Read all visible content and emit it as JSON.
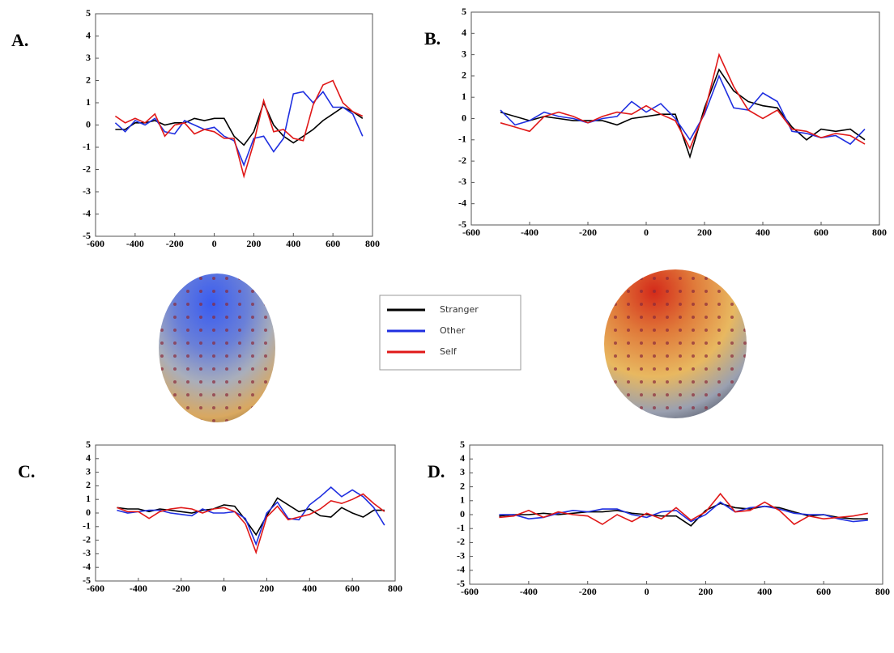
{
  "chart_data": [
    {
      "type": "line",
      "label": "A.",
      "x": [
        -500,
        -450,
        -400,
        -350,
        -300,
        -250,
        -200,
        -150,
        -100,
        -50,
        0,
        50,
        100,
        150,
        200,
        250,
        300,
        350,
        400,
        450,
        500,
        550,
        600,
        650,
        700,
        750
      ],
      "series": [
        {
          "values": [
            -0.2,
            -0.2,
            0.1,
            0.1,
            0.2,
            0,
            0.1,
            0.1,
            0.3,
            0.2,
            0.3,
            0.3,
            -0.5,
            -0.9,
            -0.3,
            1.0,
            0,
            -0.5,
            -0.8,
            -0.5,
            -0.2,
            0.2,
            0.5,
            0.8,
            0.6,
            0.3
          ]
        },
        {
          "values": [
            0.1,
            -0.3,
            0.2,
            0,
            0.3,
            -0.3,
            -0.4,
            0.2,
            0,
            -0.2,
            -0.1,
            -0.5,
            -0.7,
            -1.8,
            -0.6,
            -0.5,
            -1.2,
            -0.6,
            1.4,
            1.5,
            1.0,
            1.5,
            0.8,
            0.8,
            0.5,
            -0.5
          ]
        },
        {
          "values": [
            0.4,
            0.1,
            0.3,
            0.1,
            0.5,
            -0.5,
            0,
            0.1,
            -0.4,
            -0.2,
            -0.3,
            -0.6,
            -0.6,
            -2.3,
            -0.8,
            1.1,
            -0.3,
            -0.2,
            -0.6,
            -0.7,
            0.9,
            1.8,
            2.0,
            1.0,
            0.6,
            0.4
          ]
        }
      ],
      "xlim": [
        -600,
        800
      ],
      "ylim": [
        -5,
        5
      ],
      "xticks": [
        -600,
        -400,
        -200,
        0,
        200,
        400,
        600,
        800
      ],
      "yticks": [
        -5,
        -4,
        -3,
        -2,
        -1,
        0,
        1,
        2,
        3,
        4,
        5
      ]
    },
    {
      "type": "line",
      "label": "B.",
      "x": [
        -500,
        -450,
        -400,
        -350,
        -300,
        -250,
        -200,
        -150,
        -100,
        -50,
        0,
        50,
        100,
        150,
        200,
        250,
        300,
        350,
        400,
        450,
        500,
        550,
        600,
        650,
        700,
        750
      ],
      "series": [
        {
          "values": [
            0.3,
            0.1,
            -0.1,
            0.1,
            0,
            -0.1,
            -0.1,
            -0.1,
            -0.3,
            0,
            0.1,
            0.2,
            0.2,
            -1.8,
            0.5,
            2.3,
            1.3,
            0.8,
            0.6,
            0.5,
            -0.4,
            -1,
            -0.5,
            -0.6,
            -0.5,
            -1.0
          ]
        },
        {
          "values": [
            0.4,
            -0.3,
            -0.1,
            0.3,
            0.1,
            0,
            -0.2,
            0,
            0.1,
            0.8,
            0.3,
            0.7,
            0,
            -1.0,
            0.2,
            2.0,
            0.5,
            0.4,
            1.2,
            0.8,
            -0.6,
            -0.7,
            -0.9,
            -0.8,
            -1.2,
            -0.5
          ]
        },
        {
          "values": [
            -0.2,
            -0.4,
            -0.6,
            0.1,
            0.3,
            0.1,
            -0.2,
            0.1,
            0.3,
            0.2,
            0.6,
            0.2,
            -0.1,
            -1.4,
            0.3,
            3.0,
            1.5,
            0.4,
            0,
            0.4,
            -0.5,
            -0.6,
            -0.9,
            -0.7,
            -0.8,
            -1.2
          ]
        }
      ],
      "xlim": [
        -600,
        800
      ],
      "ylim": [
        -5,
        5
      ],
      "xticks": [
        -600,
        -400,
        -200,
        0,
        200,
        400,
        600,
        800
      ],
      "yticks": [
        -5,
        -4,
        -3,
        -2,
        -1,
        0,
        1,
        2,
        3,
        4,
        5
      ]
    },
    {
      "type": "line",
      "label": "C.",
      "x": [
        -500,
        -450,
        -400,
        -350,
        -300,
        -250,
        -200,
        -150,
        -100,
        -50,
        0,
        50,
        100,
        150,
        200,
        250,
        300,
        350,
        400,
        450,
        500,
        550,
        600,
        650,
        700,
        750
      ],
      "series": [
        {
          "values": [
            0.4,
            0.3,
            0.3,
            0.1,
            0.3,
            0.2,
            0.1,
            0,
            0.2,
            0.3,
            0.6,
            0.5,
            -0.5,
            -1.6,
            -0.2,
            1.1,
            0.6,
            0.1,
            0.3,
            -0.2,
            -0.3,
            0.4,
            0,
            -0.3,
            0.2,
            0.2
          ]
        },
        {
          "values": [
            0.2,
            0,
            0.1,
            0.2,
            0.2,
            0,
            -0.1,
            -0.2,
            0.3,
            0,
            0,
            0.1,
            -0.4,
            -2.3,
            0,
            0.8,
            -0.4,
            -0.5,
            0.6,
            1.2,
            1.9,
            1.2,
            1.7,
            1.2,
            0.4,
            -0.9
          ]
        },
        {
          "values": [
            0.4,
            0.1,
            0.1,
            -0.4,
            0.1,
            0.3,
            0.4,
            0.3,
            0,
            0.3,
            0.4,
            0.1,
            -0.8,
            -2.9,
            -0.3,
            0.5,
            -0.5,
            -0.3,
            -0.1,
            0.3,
            0.9,
            0.7,
            1.0,
            1.4,
            0.7,
            0.1
          ]
        }
      ],
      "xlim": [
        -600,
        800
      ],
      "ylim": [
        -5,
        5
      ],
      "xticks": [
        -600,
        -400,
        -200,
        0,
        200,
        400,
        600,
        800
      ],
      "yticks": [
        -5,
        -4,
        -3,
        -2,
        -1,
        0,
        1,
        2,
        3,
        4,
        5
      ]
    },
    {
      "type": "line",
      "label": "D.",
      "x": [
        -500,
        -450,
        -400,
        -350,
        -300,
        -250,
        -200,
        -150,
        -100,
        -50,
        0,
        50,
        100,
        150,
        200,
        250,
        300,
        350,
        400,
        450,
        500,
        550,
        600,
        650,
        700,
        750
      ],
      "series": [
        {
          "values": [
            -0.1,
            0,
            0,
            0.1,
            0,
            0.1,
            0.2,
            0.2,
            0.3,
            0.1,
            0,
            -0.1,
            -0.1,
            -0.8,
            0.3,
            0.8,
            0.5,
            0.4,
            0.6,
            0.5,
            0.2,
            -0.1,
            0,
            -0.2,
            -0.3,
            -0.3
          ]
        },
        {
          "values": [
            0,
            0,
            -0.3,
            -0.2,
            0.1,
            0.3,
            0.2,
            0.4,
            0.4,
            0,
            -0.2,
            0.2,
            0.3,
            -0.5,
            0,
            0.9,
            0.2,
            0.5,
            0.6,
            0.4,
            0.1,
            0,
            0,
            -0.3,
            -0.5,
            -0.4
          ]
        },
        {
          "values": [
            -0.2,
            -0.1,
            0.3,
            -0.2,
            0.2,
            0,
            -0.1,
            -0.7,
            0,
            -0.5,
            0.1,
            -0.3,
            0.5,
            -0.4,
            0.2,
            1.5,
            0.2,
            0.3,
            0.9,
            0.3,
            -0.7,
            -0.1,
            -0.3,
            -0.2,
            -0.1,
            0.1
          ]
        }
      ],
      "xlim": [
        -600,
        800
      ],
      "ylim": [
        -5,
        5
      ],
      "xticks": [
        -600,
        -400,
        -200,
        0,
        200,
        400,
        600,
        800
      ],
      "yticks": [
        -5,
        -4,
        -3,
        -2,
        -1,
        0,
        1,
        2,
        3,
        4,
        5
      ]
    }
  ],
  "legend": [
    {
      "name": "Stranger",
      "color": "#000000"
    },
    {
      "name": "Other",
      "color": "#1f2fe0"
    },
    {
      "name": "Self",
      "color": "#e01818"
    }
  ]
}
